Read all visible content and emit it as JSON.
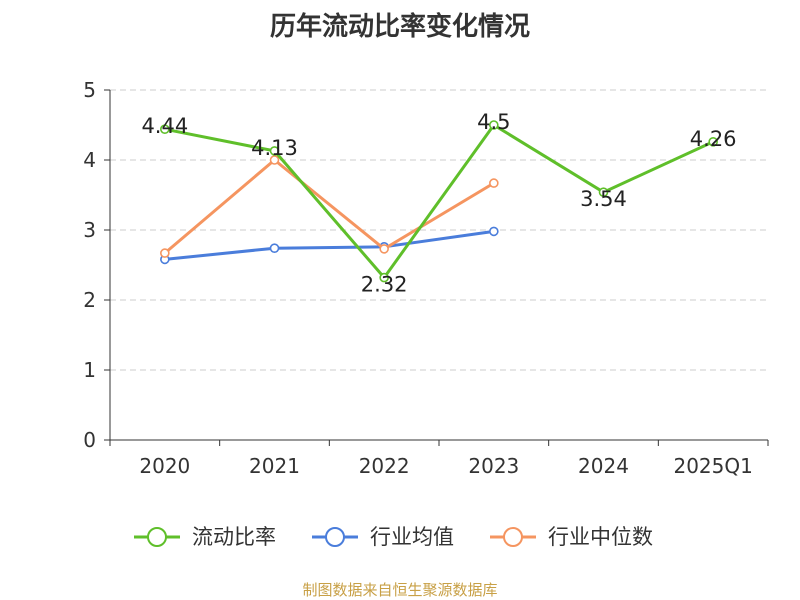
{
  "chart_data": {
    "type": "line",
    "title": "历年流动比率变化情况",
    "categories": [
      "2020",
      "2021",
      "2022",
      "2023",
      "2024",
      "2025Q1"
    ],
    "ylim": [
      0,
      5
    ],
    "yticks": [
      0,
      1,
      2,
      3,
      4,
      5
    ],
    "grid": true,
    "legend_position": "bottom",
    "series": [
      {
        "name": "流动比率",
        "color": "#5fbf2a",
        "values": [
          4.44,
          4.13,
          2.32,
          4.5,
          3.54,
          4.26
        ],
        "labels": [
          "4.44",
          "4.13",
          "2.32",
          "4.5",
          "3.54",
          "4.26"
        ]
      },
      {
        "name": "行业均值",
        "color": "#4a7ddb",
        "values": [
          2.58,
          2.74,
          2.76,
          2.98,
          null,
          null
        ]
      },
      {
        "name": "行业中位数",
        "color": "#f59560",
        "values": [
          2.67,
          4.0,
          2.73,
          3.67,
          null,
          null
        ]
      }
    ]
  },
  "source": "制图数据来自恒生聚源数据库"
}
